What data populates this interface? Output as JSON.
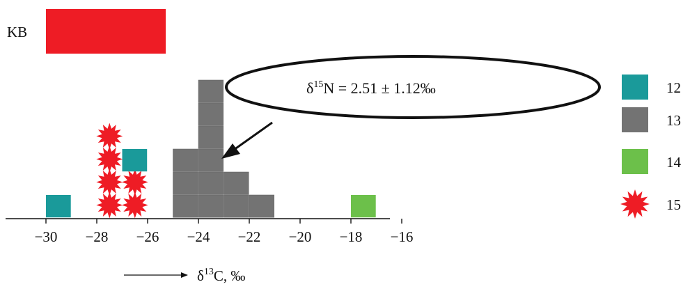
{
  "chart_data": {
    "type": "histogram",
    "panel_label": "KB",
    "bar_color": "#ee1c25",
    "annotation": {
      "symbol": "δ",
      "superscript": "15",
      "element": "N",
      "text": " = 2.51 ± 1.12‰"
    },
    "xaxis": {
      "arrow_label_symbol": "δ",
      "arrow_label_superscript": "13",
      "arrow_label_rest": "C, ‰",
      "ticks": [
        "−30",
        "−28",
        "−26",
        "−24",
        "−22",
        "−20",
        "−18",
        "−16"
      ],
      "tick_values": [
        -30,
        -28,
        -26,
        -24,
        -22,
        -20,
        -18,
        -16
      ],
      "xlim": [
        -31,
        -15.5
      ]
    },
    "bin_width": 1,
    "legend": [
      {
        "label": "12",
        "color": "#1a9a9a",
        "marker": "square"
      },
      {
        "label": "13",
        "color": "#737373",
        "marker": "square"
      },
      {
        "label": "14",
        "color": "#6cc04a",
        "marker": "square"
      },
      {
        "label": "15",
        "color": "#ee1c25",
        "marker": "star"
      }
    ],
    "stacks": [
      {
        "x_start": -30,
        "group": "12",
        "count": 1
      },
      {
        "x_start": -28,
        "group": "15",
        "count": 4
      },
      {
        "x_start": -27,
        "group": "15",
        "count": 2
      },
      {
        "x_start": -27,
        "group": "12",
        "count": 1
      },
      {
        "x_start": -25,
        "group": "13",
        "count": 3
      },
      {
        "x_start": -24,
        "group": "13",
        "count": 6
      },
      {
        "x_start": -23,
        "group": "13",
        "count": 2
      },
      {
        "x_start": -22,
        "group": "13",
        "count": 1
      },
      {
        "x_start": -18,
        "group": "14",
        "count": 1
      }
    ]
  }
}
